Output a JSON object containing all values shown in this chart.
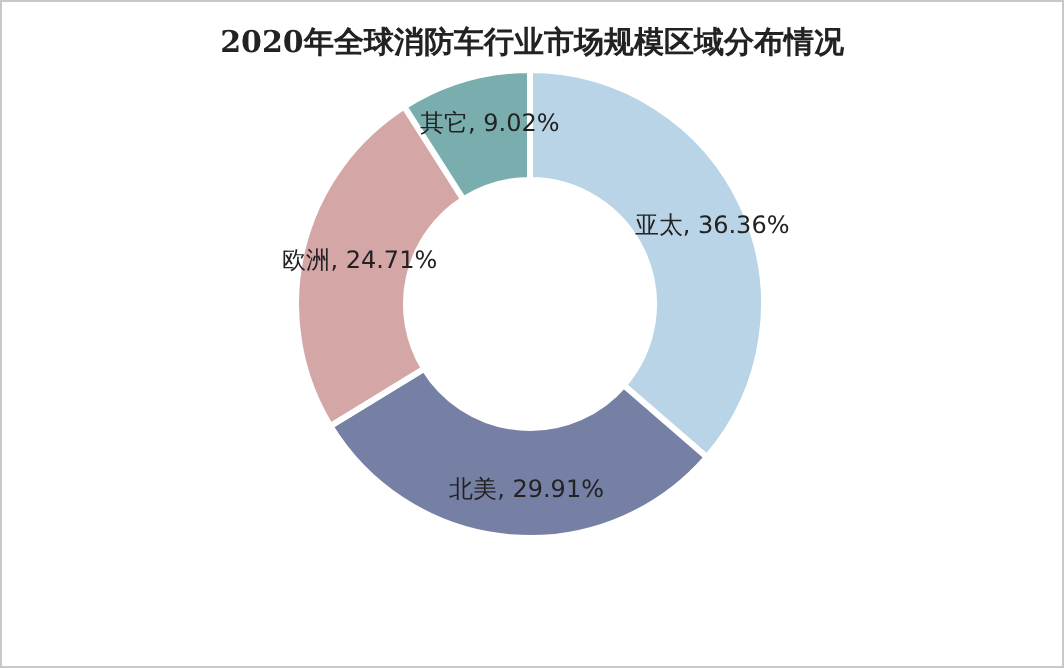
{
  "chart_data": {
    "type": "donut",
    "title": "2020年全球消防车行业市场规模区域分布情况",
    "categories": [
      "亚太",
      "北美",
      "欧洲",
      "其它"
    ],
    "values": [
      36.36,
      29.91,
      24.71,
      9.02
    ],
    "value_labels": [
      "36.36%",
      "29.91%",
      "24.71%",
      "9.02%"
    ],
    "colors": [
      "#b8d4e6",
      "#7680a4",
      "#d4a6a6",
      "#7aaeae"
    ]
  }
}
